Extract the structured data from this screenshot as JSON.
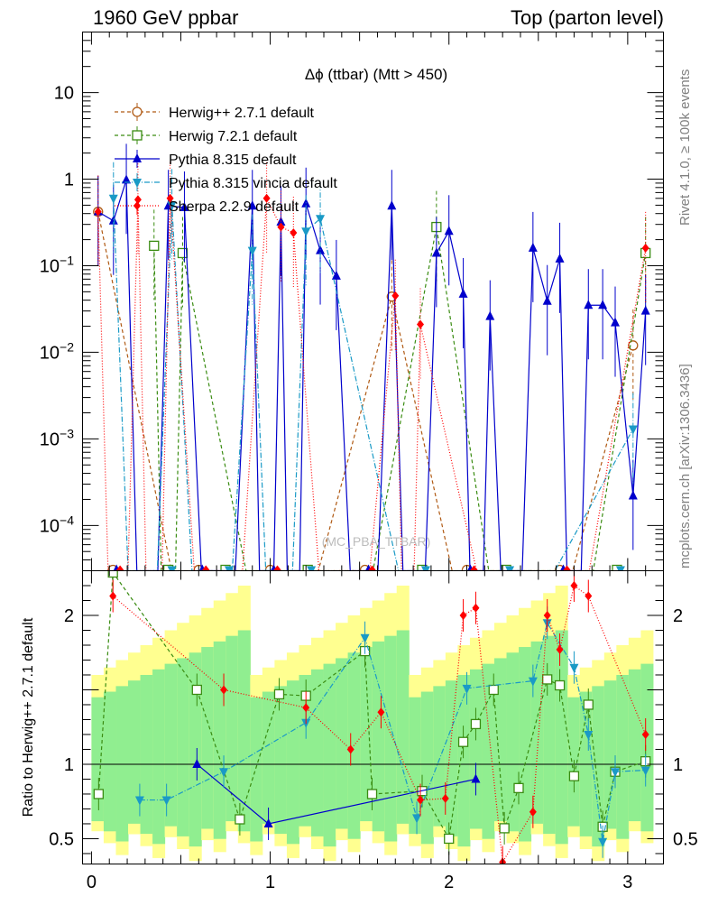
{
  "header": {
    "left": "1960 GeV ppbar",
    "right": "Top (parton level)"
  },
  "side_text": {
    "rivet": "Rivet 4.1.0, ≥ 100k events",
    "mcplots": "mcplots.cern.ch [arXiv:1306.3436]"
  },
  "watermark": "(MC_PBA_TTBAR)",
  "ratio_ylabel": "Ratio to Herwig++ 2.7.1 default",
  "chart_data": {
    "type": "line",
    "title": "Δϕ (ttbar) (Mtt > 450)",
    "xlabel": "",
    "xlim": [
      -0.05,
      3.2
    ],
    "main": {
      "yscale": "log",
      "ylim": [
        3e-05,
        50
      ],
      "yticks": [
        {
          "value": 0.0001,
          "label": "10^-4"
        },
        {
          "value": 0.001,
          "label": "10^-3"
        },
        {
          "value": 0.01,
          "label": "10^-2"
        },
        {
          "value": 0.1,
          "label": "10^-1"
        },
        {
          "value": 1,
          "label": "1"
        },
        {
          "value": 10,
          "label": "10"
        }
      ]
    },
    "ratio": {
      "ylim": [
        0.33,
        2.3
      ],
      "yticks": [
        {
          "value": 0.5,
          "label": "0.5"
        },
        {
          "value": 1,
          "label": "1"
        },
        {
          "value": 2,
          "label": "2"
        }
      ],
      "reference": 1,
      "band_inner_color": "#90ee90",
      "band_outer_color": "#ffff90"
    },
    "xticks": [
      {
        "value": 0,
        "label": "0"
      },
      {
        "value": 1,
        "label": "1"
      },
      {
        "value": 2,
        "label": "2"
      },
      {
        "value": 3,
        "label": "3"
      }
    ],
    "series": [
      {
        "name": "Herwig++ 2.7.1 default",
        "color": "#b05a14",
        "dash": "4,3",
        "marker": "circle",
        "x": [
          0.037,
          1.68,
          3.03
        ],
        "values": [
          0.42,
          0.044,
          0.012
        ],
        "ratio_x": [],
        "ratio": []
      },
      {
        "name": "Herwig 7.2.1 default",
        "color": "#3a8c12",
        "dash": "4,3",
        "marker": "square",
        "x": [
          0.35,
          0.51,
          1.93,
          3.1
        ],
        "values": [
          0.17,
          0.14,
          0.28,
          0.14
        ],
        "ratio_x": [
          0.04,
          0.12,
          0.59,
          0.83,
          1.05,
          1.2,
          1.53,
          1.57,
          1.85,
          2.0,
          2.08,
          2.15,
          2.25,
          2.31,
          2.39,
          2.55,
          2.62,
          2.7,
          2.78,
          2.86,
          2.93,
          3.1
        ],
        "ratio": [
          0.8,
          2.3,
          1.5,
          0.63,
          1.47,
          1.46,
          1.76,
          0.8,
          0.82,
          0.5,
          1.15,
          1.27,
          1.5,
          0.57,
          0.84,
          1.57,
          1.53,
          0.92,
          1.4,
          0.58,
          0.95,
          1.02
        ]
      },
      {
        "name": "Pythia 8.315 default",
        "color": "#0000cc",
        "dash": "",
        "marker": "triangle-up",
        "x": [
          0.037,
          0.123,
          0.195,
          0.43,
          0.52,
          0.9,
          1.06,
          1.2,
          1.28,
          1.37,
          1.68,
          1.93,
          2.0,
          2.08,
          2.23,
          2.47,
          2.55,
          2.62,
          2.78,
          2.86,
          2.93,
          3.03,
          3.1
        ],
        "values": [
          0.42,
          0.33,
          0.98,
          0.49,
          0.47,
          0.49,
          0.32,
          0.52,
          0.15,
          0.076,
          0.49,
          0.14,
          0.25,
          0.047,
          0.026,
          0.16,
          0.039,
          0.12,
          0.035,
          0.035,
          0.022,
          0.00022,
          0.03
        ],
        "ratio_x": [
          0.59,
          0.99,
          2.15
        ],
        "ratio": [
          1.0,
          0.6,
          0.9
        ]
      },
      {
        "name": "Pythia 8.315 vincia default",
        "color": "#1a9ac6",
        "dash": "6,2,1,2",
        "marker": "triangle-down",
        "x": [
          0.123,
          0.45,
          0.9,
          1.2,
          1.28,
          3.03
        ],
        "values": [
          0.6,
          0.5,
          0.15,
          0.25,
          0.35,
          0.0013
        ],
        "ratio_x": [
          0.27,
          0.42,
          0.74,
          1.2,
          1.53,
          1.82,
          2.1,
          2.47,
          2.55,
          2.7,
          2.78,
          2.86,
          2.93,
          3.1
        ],
        "ratio": [
          0.76,
          0.76,
          0.95,
          1.28,
          1.85,
          0.64,
          1.51,
          1.56,
          1.95,
          1.65,
          1.2,
          0.48,
          0.95,
          0.96
        ]
      },
      {
        "name": "Sherpa 2.2.9 default",
        "color": "#ff0000",
        "dash": "1,2",
        "marker": "diamond",
        "x": [
          0.037,
          0.26,
          0.44,
          0.98,
          1.06,
          1.13,
          1.7,
          1.84,
          3.1
        ],
        "values": [
          0.42,
          0.58,
          0.6,
          0.6,
          0.28,
          0.24,
          0.045,
          0.021,
          0.16
        ],
        "ratio_x": [
          0.12,
          0.74,
          1.2,
          1.45,
          1.62,
          1.84,
          1.98,
          2.08,
          2.15,
          2.3,
          2.47,
          2.55,
          2.62,
          2.7,
          2.78,
          3.1
        ],
        "ratio": [
          2.13,
          1.5,
          1.38,
          1.1,
          1.35,
          0.76,
          0.77,
          2.0,
          2.05,
          0.32,
          0.68,
          2.0,
          1.77,
          2.2,
          2.13,
          1.2
        ]
      }
    ]
  }
}
